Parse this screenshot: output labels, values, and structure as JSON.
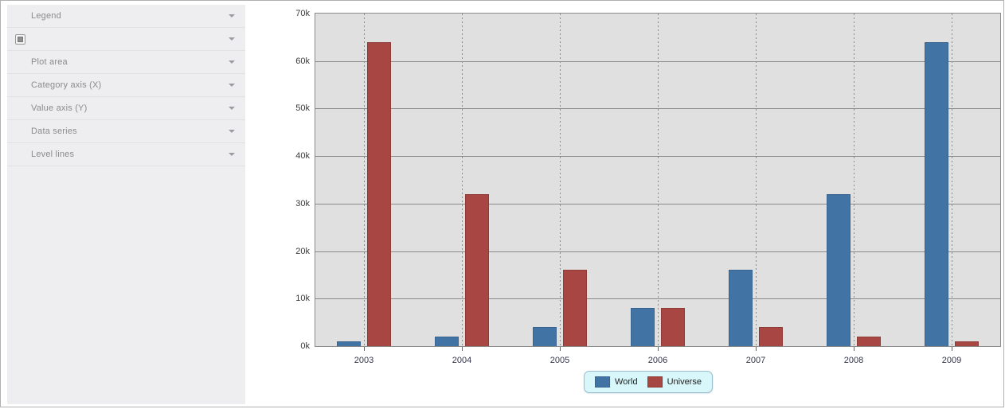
{
  "window": {
    "border_color": "#b0b0b0",
    "bg": "#ffffff"
  },
  "sidebar": {
    "bg": "#eeeef0",
    "text_color": "#8b8b8b",
    "items": [
      {
        "label": "Legend"
      },
      {
        "label": "",
        "icon": "square-swatch-icon"
      },
      {
        "label": "Plot area"
      },
      {
        "label": "Category axis (X)"
      },
      {
        "label": "Value axis (Y)"
      },
      {
        "label": "Data series"
      },
      {
        "label": "Level lines"
      }
    ]
  },
  "chart_data": {
    "type": "bar",
    "categories": [
      "2003",
      "2004",
      "2005",
      "2006",
      "2007",
      "2008",
      "2009"
    ],
    "series": [
      {
        "name": "World",
        "color": "#4273a5",
        "border_color": "#38648f",
        "values": [
          1000,
          2000,
          4000,
          8000,
          16000,
          32000,
          64000
        ]
      },
      {
        "name": "Universe",
        "color": "#a84643",
        "border_color": "#8f3b38",
        "values": [
          64000,
          32000,
          16000,
          8000,
          4000,
          2000,
          1000
        ]
      }
    ],
    "title": "",
    "xlabel": "",
    "ylabel": "",
    "ylim": [
      0,
      70000
    ],
    "ytick_step": 10000,
    "ytick_labels": [
      "0k",
      "10k",
      "20k",
      "30k",
      "40k",
      "50k",
      "60k",
      "70k"
    ],
    "grid": "horizontal solid, vertical dotted at category centers",
    "plot_bg": "#e0e0e0",
    "grid_color": "#8a8a8a",
    "legend_position": "bottom-center",
    "legend_bg": "#d8f7fa",
    "legend_border": "#9dbccb"
  }
}
